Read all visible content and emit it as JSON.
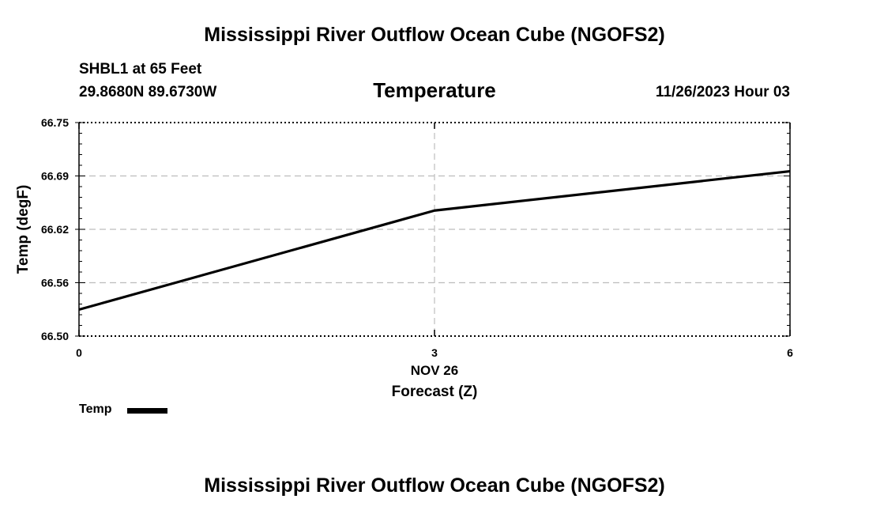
{
  "header": {
    "title": "Mississippi River Outflow Ocean Cube (NGOFS2)",
    "station": "SHBL1 at 65 Feet",
    "coords": "29.8680N  89.6730W",
    "datetime": "11/26/2023 Hour 03",
    "footer_title": "Mississippi River Outflow Ocean Cube (NGOFS2)"
  },
  "chart_data": {
    "type": "line",
    "title": "Temperature",
    "xlabel": "Forecast (Z)",
    "x_date_label": "NOV 26",
    "ylabel": "Temp (degF)",
    "xlim": [
      0,
      6
    ],
    "ylim": [
      66.5,
      66.75
    ],
    "x_ticks": [
      0,
      3,
      6
    ],
    "x_tick_labels": [
      "0",
      "3",
      "6"
    ],
    "y_ticks": [
      66.5,
      66.5625,
      66.625,
      66.6875,
      66.75
    ],
    "y_tick_labels": [
      "66.50",
      "66.56",
      "66.62",
      "66.69",
      "66.75"
    ],
    "grid": true,
    "series": [
      {
        "name": "Temp",
        "x": [
          0,
          3,
          6
        ],
        "y": [
          66.531,
          66.647,
          66.693
        ],
        "color": "#000000"
      }
    ],
    "legend": {
      "position": "bottom-left",
      "entries": [
        "Temp"
      ]
    }
  }
}
